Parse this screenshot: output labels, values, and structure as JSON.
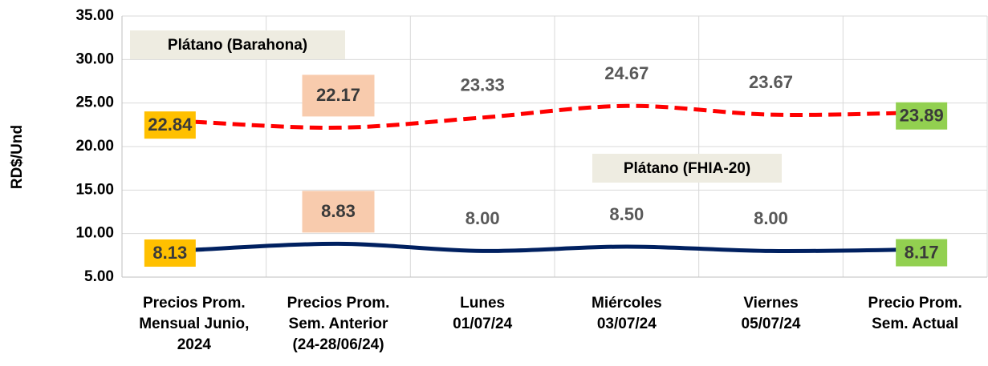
{
  "chart_data": {
    "type": "line",
    "y_label": "RD$/Und",
    "categories": [
      "Precios Prom.\nMensual Junio,\n2024",
      "Precios Prom.\nSem. Anterior\n(24-28/06/24)",
      "Lunes\n01/07/24",
      "Miércoles\n03/07/24",
      "Viernes\n05/07/24",
      "Precio Prom.\nSem. Actual"
    ],
    "series": [
      {
        "name": "Plátano (Barahona)",
        "color": "#ff0000",
        "dashed": true,
        "values": [
          22.84,
          22.17,
          23.33,
          24.67,
          23.67,
          23.89
        ],
        "value_labels": [
          "22.84",
          "22.17",
          "23.33",
          "24.67",
          "23.67",
          "23.89"
        ],
        "label_colors": [
          "#ffc000",
          "#f8cbad",
          "#ffffff",
          "#ffffff",
          "#ffffff",
          "#92d050"
        ]
      },
      {
        "name": "Plátano (FHIA-20)",
        "color": "#002060",
        "dashed": false,
        "values": [
          8.13,
          8.83,
          8.0,
          8.5,
          8.0,
          8.17
        ],
        "value_labels": [
          "8.13",
          "8.83",
          "8.00",
          "8.50",
          "8.00",
          "8.17"
        ],
        "label_colors": [
          "#ffc000",
          "#f8cbad",
          "#ffffff",
          "#ffffff",
          "#ffffff",
          "#92d050"
        ]
      }
    ],
    "ylim": [
      5,
      35
    ],
    "yticks": [
      {
        "value": 5,
        "label": "5.00"
      },
      {
        "value": 10,
        "label": "10.00"
      },
      {
        "value": 15,
        "label": "15.00"
      },
      {
        "value": 20,
        "label": "20.00"
      },
      {
        "value": 25,
        "label": "25.00"
      },
      {
        "value": 30,
        "label": "30.00"
      },
      {
        "value": 35,
        "label": "35.00"
      }
    ],
    "grid": true
  }
}
